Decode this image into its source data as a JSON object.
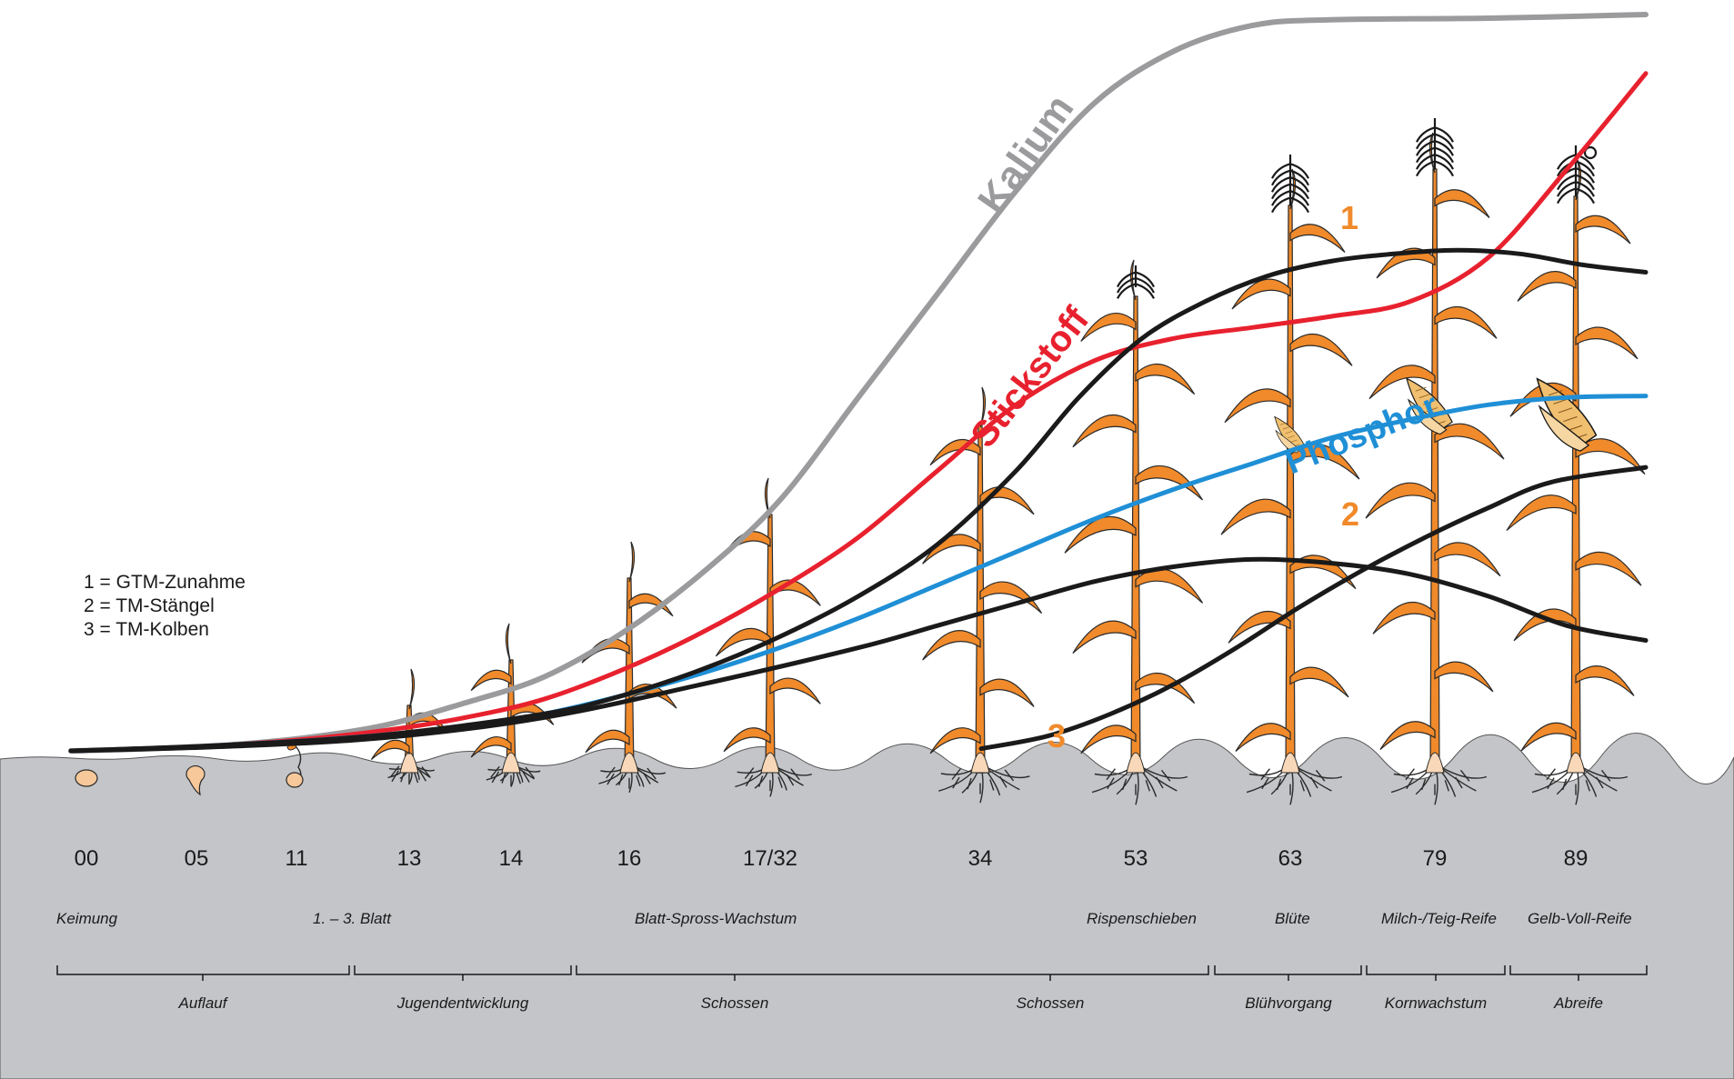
{
  "chart_data": {
    "type": "line",
    "x_stages": [
      "00",
      "05",
      "11",
      "13",
      "14",
      "16",
      "17/32",
      "34",
      "53",
      "63",
      "79",
      "89"
    ],
    "x_scale": [
      0,
      100
    ],
    "y_scale": [
      0,
      100
    ],
    "series": [
      {
        "name": "Kalium",
        "color": "#9b9b9e",
        "label_id": "",
        "points": [
          [
            0,
            0
          ],
          [
            5,
            0.3
          ],
          [
            10,
            0.8
          ],
          [
            15,
            1.8
          ],
          [
            20,
            3.5
          ],
          [
            25,
            6.5
          ],
          [
            30,
            10
          ],
          [
            35,
            16
          ],
          [
            40,
            24
          ],
          [
            45,
            34
          ],
          [
            50,
            48
          ],
          [
            55,
            62
          ],
          [
            60,
            76
          ],
          [
            65,
            88
          ],
          [
            70,
            95
          ],
          [
            75,
            98.5
          ],
          [
            80,
            99.3
          ],
          [
            90,
            99.5
          ],
          [
            100,
            100
          ]
        ]
      },
      {
        "name": "Stickstoff",
        "color": "#e8212e",
        "label_id": "",
        "points": [
          [
            0,
            0
          ],
          [
            5,
            0.3
          ],
          [
            10,
            0.8
          ],
          [
            15,
            1.6
          ],
          [
            20,
            2.8
          ],
          [
            25,
            4.5
          ],
          [
            30,
            7
          ],
          [
            35,
            11
          ],
          [
            40,
            16
          ],
          [
            45,
            22
          ],
          [
            50,
            29
          ],
          [
            55,
            38
          ],
          [
            60,
            47
          ],
          [
            65,
            53
          ],
          [
            70,
            56
          ],
          [
            75,
            57.5
          ],
          [
            80,
            59
          ],
          [
            85,
            61
          ],
          [
            90,
            67
          ],
          [
            95,
            79
          ],
          [
            100,
            92
          ]
        ]
      },
      {
        "name": "Phosphor",
        "color": "#1f8fd6",
        "label_id": "",
        "points": [
          [
            0,
            0
          ],
          [
            5,
            0.3
          ],
          [
            10,
            0.8
          ],
          [
            15,
            1.4
          ],
          [
            20,
            2.2
          ],
          [
            25,
            3.3
          ],
          [
            30,
            5
          ],
          [
            35,
            7.5
          ],
          [
            40,
            10.5
          ],
          [
            45,
            14
          ],
          [
            50,
            18
          ],
          [
            55,
            22.5
          ],
          [
            60,
            27
          ],
          [
            65,
            31.5
          ],
          [
            70,
            35.5
          ],
          [
            75,
            39
          ],
          [
            80,
            42.5
          ],
          [
            85,
            45
          ],
          [
            90,
            47
          ],
          [
            95,
            48
          ],
          [
            100,
            48.2
          ]
        ]
      },
      {
        "name": "1 = GTM-Zunahme",
        "color": "#1a1a1a",
        "label_id": "1",
        "points": [
          [
            0,
            0
          ],
          [
            10,
            0.8
          ],
          [
            20,
            2.2
          ],
          [
            30,
            5
          ],
          [
            35,
            7.5
          ],
          [
            40,
            11
          ],
          [
            45,
            15.5
          ],
          [
            50,
            21
          ],
          [
            55,
            28
          ],
          [
            60,
            38
          ],
          [
            64,
            48
          ],
          [
            68,
            56
          ],
          [
            72,
            61
          ],
          [
            76,
            64.5
          ],
          [
            80,
            66.5
          ],
          [
            84,
            67.5
          ],
          [
            88,
            68
          ],
          [
            92,
            67.5
          ],
          [
            96,
            66
          ],
          [
            100,
            65
          ]
        ]
      },
      {
        "name": "2 = TM-Stängel",
        "color": "#1a1a1a",
        "label_id": "2",
        "points": [
          [
            0,
            0
          ],
          [
            10,
            0.6
          ],
          [
            20,
            1.8
          ],
          [
            30,
            4.5
          ],
          [
            40,
            9
          ],
          [
            50,
            14
          ],
          [
            55,
            17
          ],
          [
            60,
            20
          ],
          [
            65,
            23
          ],
          [
            70,
            25
          ],
          [
            75,
            26
          ],
          [
            80,
            25.5
          ],
          [
            85,
            24
          ],
          [
            90,
            21
          ],
          [
            95,
            17
          ],
          [
            100,
            15
          ]
        ]
      },
      {
        "name": "3 = TM-Kolben",
        "color": "#1a1a1a",
        "label_id": "3",
        "points": [
          [
            57.8,
            0.3
          ],
          [
            62,
            2
          ],
          [
            66,
            5
          ],
          [
            70,
            9
          ],
          [
            74,
            14
          ],
          [
            78,
            19.5
          ],
          [
            82,
            24.5
          ],
          [
            86,
            29
          ],
          [
            90,
            33
          ],
          [
            94,
            36.5
          ],
          [
            100,
            38.5
          ]
        ]
      }
    ],
    "markers": [
      {
        "label": "1",
        "color": "#f08a2b"
      },
      {
        "label": "2",
        "color": "#f08a2b"
      },
      {
        "label": "3",
        "color": "#f08a2b"
      }
    ],
    "legend": [
      "1 = GTM-Zunahme",
      "2 = TM-Stängel",
      "3 = TM-Kolben"
    ],
    "upper_stage_labels": [
      "Keimung",
      "1. – 3. Blatt",
      "Blatt-Spross-Wachstum",
      "Rispenschieben",
      "Blüte",
      "Milch-/Teig-Reife",
      "Gelb-Voll-Reife"
    ],
    "lower_stage_labels": [
      "Auflauf",
      "Jugendentwicklung",
      "Schossen",
      "Schossen",
      "Blühvorgang",
      "Kornwachstum",
      "Abreife"
    ]
  },
  "colors": {
    "ground": "#c3c5c8",
    "plant": "#f08a2b",
    "plant_outline": "#2a2a2a",
    "root": "#2a2a2a"
  },
  "icons": [
    "maize-plant-icon",
    "seed-icon",
    "tassel-icon",
    "cob-icon",
    "root-icon"
  ]
}
